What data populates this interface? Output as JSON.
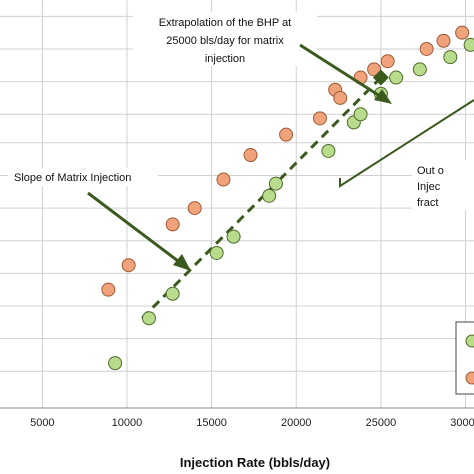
{
  "chart_data": {
    "type": "scatter",
    "title": "",
    "xlabel": "Injection Rate (bbls/day)",
    "ylabel": "",
    "xlim": [
      2500,
      30500
    ],
    "ylim": [
      0,
      100
    ],
    "x_ticks": [
      "5000",
      "10000",
      "15000",
      "20000",
      "25000",
      "30000"
    ],
    "x_tick_values": [
      5000,
      10000,
      15000,
      20000,
      25000,
      30000
    ],
    "y_grid_values": [
      9,
      17,
      25,
      33,
      41,
      49,
      57,
      65,
      72,
      80,
      88,
      96
    ],
    "grid": true,
    "legend_position": "bottom-right",
    "series": [
      {
        "color": "#f0a37a",
        "edge": "#9c5a35",
        "points": [
          {
            "x": 8900,
            "y": 29
          },
          {
            "x": 10100,
            "y": 35
          },
          {
            "x": 12700,
            "y": 45
          },
          {
            "x": 14000,
            "y": 49
          },
          {
            "x": 15700,
            "y": 56
          },
          {
            "x": 17300,
            "y": 62
          },
          {
            "x": 19400,
            "y": 67
          },
          {
            "x": 21400,
            "y": 71
          },
          {
            "x": 22300,
            "y": 78
          },
          {
            "x": 22600,
            "y": 76
          },
          {
            "x": 23800,
            "y": 81
          },
          {
            "x": 24600,
            "y": 83
          },
          {
            "x": 25400,
            "y": 85
          },
          {
            "x": 27700,
            "y": 88
          },
          {
            "x": 28700,
            "y": 90
          },
          {
            "x": 29800,
            "y": 92
          }
        ]
      },
      {
        "color": "#b9dc8c",
        "edge": "#4f6b2b",
        "points": [
          {
            "x": 9300,
            "y": 11
          },
          {
            "x": 11300,
            "y": 22
          },
          {
            "x": 12700,
            "y": 28
          },
          {
            "x": 15300,
            "y": 38
          },
          {
            "x": 16300,
            "y": 42
          },
          {
            "x": 18400,
            "y": 52
          },
          {
            "x": 18800,
            "y": 55
          },
          {
            "x": 21900,
            "y": 63
          },
          {
            "x": 23400,
            "y": 70
          },
          {
            "x": 23800,
            "y": 72
          },
          {
            "x": 25000,
            "y": 77
          },
          {
            "x": 25900,
            "y": 81
          },
          {
            "x": 27300,
            "y": 83
          },
          {
            "x": 29100,
            "y": 86
          },
          {
            "x": 30300,
            "y": 89
          }
        ]
      }
    ],
    "trendline": {
      "x": [
        10900,
        25000
      ],
      "y": [
        22,
        81
      ],
      "style": "dashed",
      "color": "#3b5a1e"
    },
    "extrapolated_point": {
      "x": 25000,
      "y": 81,
      "marker": "diamond",
      "color": "#3b5a1e"
    },
    "annotations": [
      {
        "text_lines": [
          "Extrapolation of the BHP at",
          "25000 bls/day for matrix",
          "injection"
        ]
      },
      {
        "text_lines": [
          "Slope of Matrix Injection"
        ]
      },
      {
        "text_lines": [
          "Out o",
          "Injec",
          "fract"
        ]
      }
    ]
  }
}
